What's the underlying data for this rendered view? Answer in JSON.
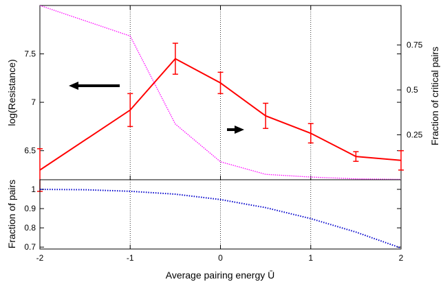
{
  "chart_data": [
    {
      "panel": "top",
      "type": "line",
      "xlabel": "",
      "ylabel": "log(Resistance)",
      "ylabel_right": "Fraction of critical pairs",
      "xlim": [
        -2,
        2
      ],
      "ylim": [
        6.2,
        8.0
      ],
      "ylim_right": [
        0.0,
        0.97
      ],
      "xticks": [
        -2,
        -1,
        0,
        1,
        2
      ],
      "yticks": [
        6.5,
        7,
        7.5
      ],
      "ytick_labels": [
        "6.5",
        "7",
        "7.5"
      ],
      "yticks_right": [
        0.25,
        0.5,
        0.75
      ],
      "ytick_labels_right": [
        "0.25",
        "0.5",
        "0.75"
      ],
      "grid": "vertical dotted lines at x ticks",
      "series": [
        {
          "axis": "left",
          "color": "#ff0000",
          "style": "solid with error bars",
          "x": [
            -2,
            -1,
            -0.5,
            0,
            0.5,
            1,
            1.5,
            2
          ],
          "y": [
            6.3,
            6.92,
            7.45,
            7.2,
            6.86,
            6.68,
            6.44,
            6.4
          ],
          "err": [
            0.22,
            0.17,
            0.16,
            0.11,
            0.13,
            0.1,
            0.05,
            0.1
          ]
        },
        {
          "axis": "right",
          "color": "#ff00ff",
          "style": "dotted",
          "x": [
            -2,
            -1,
            -0.5,
            0,
            0.5,
            1,
            1.5,
            2
          ],
          "y": [
            0.97,
            0.8,
            0.31,
            0.1,
            0.03,
            0.015,
            0.005,
            0.002
          ]
        }
      ],
      "annotations": [
        {
          "type": "arrow",
          "direction": "left",
          "meaning": "left axis"
        },
        {
          "type": "arrow",
          "direction": "right",
          "meaning": "right axis"
        }
      ]
    },
    {
      "panel": "bottom",
      "type": "line",
      "xlabel": "Average pairing energy Ū",
      "ylabel": "Fraction of pairs",
      "xlim": [
        -2,
        2
      ],
      "ylim": [
        0.69,
        1.05
      ],
      "xticks": [
        -2,
        -1,
        0,
        1,
        2
      ],
      "xtick_labels": [
        "-2",
        "-1",
        "0",
        "1",
        "2"
      ],
      "yticks": [
        0.7,
        0.8,
        0.9,
        1.0
      ],
      "ytick_labels": [
        "0.7",
        "0.8",
        "0.9",
        "1"
      ],
      "grid": "vertical dotted lines at x ticks",
      "series": [
        {
          "color": "#0000cc",
          "style": "dotted",
          "x": [
            -2,
            -1.5,
            -1,
            -0.5,
            0,
            0.5,
            1,
            1.5,
            2
          ],
          "y": [
            1.0,
            0.998,
            0.99,
            0.975,
            0.947,
            0.905,
            0.848,
            0.778,
            0.695
          ]
        }
      ]
    }
  ]
}
